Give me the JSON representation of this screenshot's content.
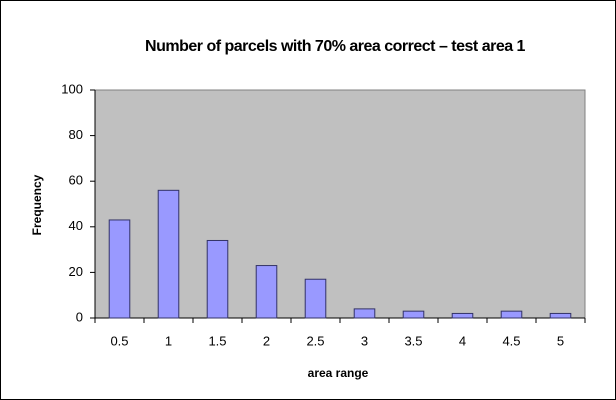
{
  "chart_data": {
    "type": "bar",
    "title": "Number of parcels with 70% area correct – test area 1",
    "xlabel": "area range",
    "ylabel": "Frequency",
    "categories": [
      "0.5",
      "1",
      "1.5",
      "2",
      "2.5",
      "3",
      "3.5",
      "4",
      "4.5",
      "5"
    ],
    "values": [
      43,
      56,
      34,
      23,
      17,
      4,
      3,
      2,
      3,
      2
    ],
    "color": "#9999ff",
    "ylim": [
      0,
      100
    ],
    "yticks": [
      0,
      20,
      40,
      60,
      80,
      100
    ],
    "grid": false
  }
}
